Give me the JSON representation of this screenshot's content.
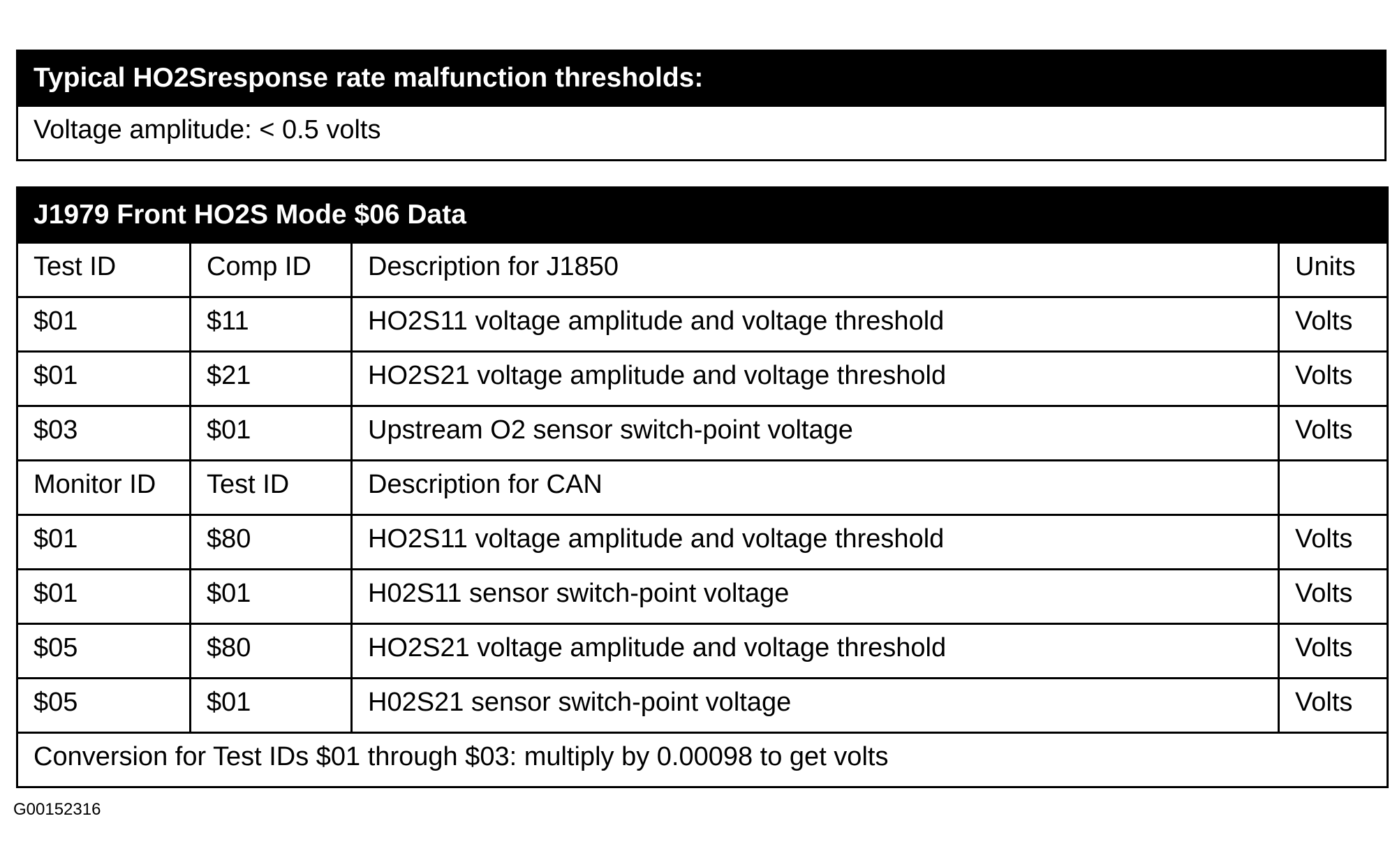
{
  "box1": {
    "title": "Typical HO2Sresponse rate malfunction thresholds:",
    "text": "Voltage amplitude: < 0.5 volts"
  },
  "table": {
    "title": "J1979 Front HO2S Mode $06 Data",
    "rows": [
      [
        "Test ID",
        "Comp ID",
        "Description for J1850",
        "Units"
      ],
      [
        "$01",
        "$11",
        "HO2S11 voltage amplitude and voltage threshold",
        "Volts"
      ],
      [
        "$01",
        "$21",
        "HO2S21 voltage amplitude and voltage threshold",
        "Volts"
      ],
      [
        "$03",
        "$01",
        "Upstream O2 sensor switch-point voltage",
        "Volts"
      ],
      [
        "Monitor ID",
        "Test ID",
        "Description for CAN",
        null
      ],
      [
        "$01",
        "$80",
        "HO2S11 voltage amplitude and voltage threshold",
        "Volts"
      ],
      [
        "$01",
        "$01",
        "H02S11 sensor switch-point voltage",
        "Volts"
      ],
      [
        "$05",
        "$80",
        "HO2S21 voltage amplitude and voltage threshold",
        "Volts"
      ],
      [
        "$05",
        "$01",
        "H02S21 sensor switch-point voltage",
        "Volts"
      ]
    ],
    "footer": "Conversion for Test IDs $01 through $03: multiply by 0.00098 to get volts"
  },
  "figure_id": "G00152316"
}
